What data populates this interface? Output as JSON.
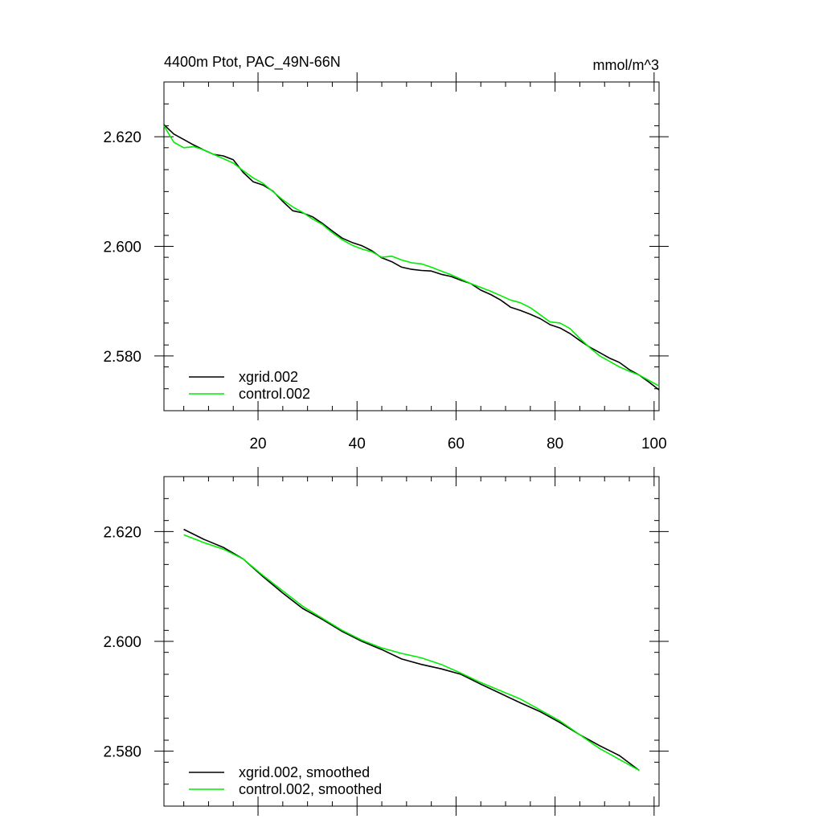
{
  "chart_data": [
    {
      "type": "line",
      "title_left": "4400m Ptot, PAC_49N-66N",
      "title_right": "mmol/m^3",
      "xlabel": "",
      "ylabel": "",
      "xlim": [
        1,
        101
      ],
      "ylim": [
        2.57,
        2.63
      ],
      "x_tick_labels": [
        "20",
        "40",
        "60",
        "80",
        "100"
      ],
      "x_ticks": [
        20,
        40,
        60,
        80,
        100
      ],
      "y_tick_labels": [
        "2.580",
        "2.600",
        "2.620"
      ],
      "y_ticks": [
        2.58,
        2.6,
        2.62
      ],
      "legend_position": "bottom-left",
      "series": [
        {
          "name": "xgrid.002",
          "color": "#000000",
          "x": [
            1,
            3,
            5,
            7,
            9,
            11,
            13,
            15,
            17,
            19,
            21,
            23,
            25,
            27,
            29,
            31,
            33,
            35,
            37,
            39,
            41,
            43,
            45,
            47,
            49,
            51,
            53,
            55,
            57,
            59,
            61,
            63,
            65,
            67,
            69,
            71,
            73,
            75,
            77,
            79,
            81,
            83,
            85,
            87,
            89,
            91,
            93,
            95,
            97,
            99,
            101
          ],
          "values": [
            2.6222,
            2.6205,
            2.6195,
            2.6185,
            2.6176,
            2.6168,
            2.6165,
            2.6158,
            2.6135,
            2.6118,
            2.6112,
            2.6101,
            2.6082,
            2.6065,
            2.6061,
            2.6054,
            2.6042,
            2.6028,
            2.6015,
            2.6007,
            2.6001,
            2.5992,
            2.5979,
            2.5972,
            2.5962,
            2.5958,
            2.5956,
            2.5955,
            2.5949,
            2.5945,
            2.5938,
            2.5932,
            2.592,
            2.5912,
            2.5902,
            2.5889,
            2.5883,
            2.5876,
            2.5868,
            2.5857,
            2.5851,
            2.5841,
            2.5828,
            2.5816,
            2.5806,
            2.5796,
            2.5788,
            2.5775,
            2.5765,
            2.5752,
            2.5738
          ]
        },
        {
          "name": "control.002",
          "color": "#00ee00",
          "x": [
            1,
            3,
            5,
            7,
            9,
            11,
            13,
            15,
            17,
            19,
            21,
            23,
            25,
            27,
            29,
            31,
            33,
            35,
            37,
            39,
            41,
            43,
            45,
            47,
            49,
            51,
            53,
            55,
            57,
            59,
            61,
            63,
            65,
            67,
            69,
            71,
            73,
            75,
            77,
            79,
            81,
            83,
            85,
            87,
            89,
            91,
            93,
            95,
            97,
            99,
            101
          ],
          "values": [
            2.622,
            2.619,
            2.618,
            2.6182,
            2.6176,
            2.6168,
            2.616,
            2.6152,
            2.6138,
            2.6125,
            2.6115,
            2.61,
            2.6085,
            2.6072,
            2.6062,
            2.605,
            2.604,
            2.6025,
            2.6012,
            2.6002,
            2.5995,
            2.599,
            2.598,
            2.5982,
            2.5975,
            2.597,
            2.5968,
            2.5962,
            2.5955,
            2.5948,
            2.594,
            2.5932,
            2.5925,
            2.5918,
            2.591,
            2.5902,
            2.5897,
            2.5888,
            2.5875,
            2.5862,
            2.586,
            2.585,
            2.5832,
            2.5815,
            2.58,
            2.579,
            2.578,
            2.5772,
            2.5765,
            2.5755,
            2.5745
          ]
        }
      ]
    },
    {
      "type": "line",
      "title_left": "",
      "title_right": "",
      "xlabel": "",
      "ylabel": "",
      "xlim": [
        1,
        101
      ],
      "ylim": [
        2.57,
        2.63
      ],
      "x_tick_labels": [],
      "x_ticks": [
        20,
        40,
        60,
        80,
        100
      ],
      "y_tick_labels": [
        "2.580",
        "2.600",
        "2.620"
      ],
      "y_ticks": [
        2.58,
        2.6,
        2.62
      ],
      "legend_position": "bottom-left",
      "series": [
        {
          "name": "xgrid.002, smoothed",
          "color": "#000000",
          "x": [
            5,
            9,
            13,
            17,
            21,
            25,
            29,
            33,
            37,
            41,
            45,
            49,
            53,
            57,
            61,
            65,
            69,
            73,
            77,
            81,
            85,
            89,
            93,
            97
          ],
          "values": [
            2.6204,
            2.6186,
            2.6171,
            2.615,
            2.6118,
            2.6088,
            2.606,
            2.604,
            2.6018,
            2.6,
            2.5985,
            2.5968,
            2.5958,
            2.595,
            2.594,
            2.5922,
            2.5905,
            2.5888,
            2.5872,
            2.5852,
            2.583,
            2.581,
            2.5792,
            2.5765
          ]
        },
        {
          "name": "control.002, smoothed",
          "color": "#00ee00",
          "x": [
            5,
            9,
            13,
            17,
            21,
            25,
            29,
            33,
            37,
            41,
            45,
            49,
            53,
            57,
            61,
            65,
            69,
            73,
            77,
            81,
            85,
            89,
            93,
            97
          ],
          "values": [
            2.6194,
            2.618,
            2.6168,
            2.615,
            2.612,
            2.6092,
            2.6064,
            2.6042,
            2.602,
            2.6002,
            2.5988,
            2.5978,
            2.597,
            2.5958,
            2.5942,
            2.5925,
            2.591,
            2.5895,
            2.5875,
            2.5855,
            2.583,
            2.5805,
            2.5785,
            2.5765
          ]
        }
      ]
    }
  ]
}
